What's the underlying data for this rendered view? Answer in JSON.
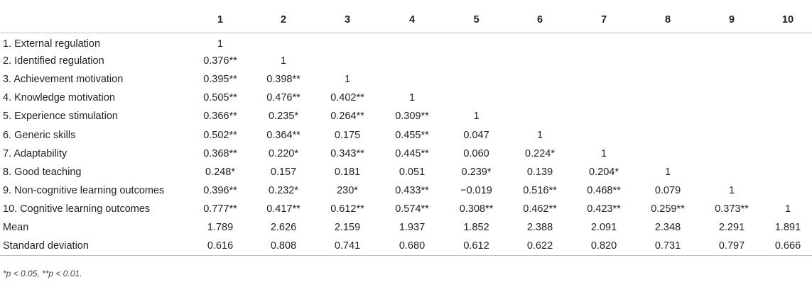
{
  "table": {
    "columns": [
      "",
      "1",
      "2",
      "3",
      "4",
      "5",
      "6",
      "7",
      "8",
      "9",
      "10"
    ],
    "rows": [
      {
        "label": "1. External regulation",
        "cells": [
          "1",
          "",
          "",
          "",
          "",
          "",
          "",
          "",
          "",
          ""
        ]
      },
      {
        "label": "2. Identified regulation",
        "cells": [
          "0.376**",
          "1",
          "",
          "",
          "",
          "",
          "",
          "",
          "",
          ""
        ]
      },
      {
        "label": "3. Achievement motivation",
        "cells": [
          "0.395**",
          "0.398**",
          "1",
          "",
          "",
          "",
          "",
          "",
          "",
          ""
        ]
      },
      {
        "label": "4. Knowledge motivation",
        "cells": [
          "0.505**",
          "0.476**",
          "0.402**",
          "1",
          "",
          "",
          "",
          "",
          "",
          ""
        ]
      },
      {
        "label": "5. Experience stimulation",
        "cells": [
          "0.366**",
          "0.235*",
          "0.264**",
          "0.309**",
          "1",
          "",
          "",
          "",
          "",
          ""
        ]
      },
      {
        "label": "6. Generic skills",
        "cells": [
          "0.502**",
          "0.364**",
          "0.175",
          "0.455**",
          "0.047",
          "1",
          "",
          "",
          "",
          ""
        ]
      },
      {
        "label": "7. Adaptability",
        "cells": [
          "0.368**",
          "0.220*",
          "0.343**",
          "0.445**",
          "0.060",
          "0.224*",
          "1",
          "",
          "",
          ""
        ]
      },
      {
        "label": "8. Good teaching",
        "cells": [
          "0.248*",
          "0.157",
          "0.181",
          "0.051",
          "0.239*",
          "0.139",
          "0.204*",
          "1",
          "",
          ""
        ]
      },
      {
        "label": "9. Non-cognitive learning outcomes",
        "cells": [
          "0.396**",
          "0.232*",
          "230*",
          "0.433**",
          "−0.019",
          "0.516**",
          "0.468**",
          "0.079",
          "1",
          ""
        ]
      },
      {
        "label": "10. Cognitive learning outcomes",
        "cells": [
          "0.777**",
          "0.417**",
          "0.612**",
          "0.574**",
          "0.308**",
          "0.462**",
          "0.423**",
          "0.259**",
          "0.373**",
          "1"
        ]
      },
      {
        "label": "Mean",
        "cells": [
          "1.789",
          "2.626",
          "2.159",
          "1.937",
          "1.852",
          "2.388",
          "2.091",
          "2.348",
          "2.291",
          "1.891"
        ]
      },
      {
        "label": "Standard deviation",
        "cells": [
          "0.616",
          "0.808",
          "0.741",
          "0.680",
          "0.612",
          "0.622",
          "0.820",
          "0.731",
          "0.797",
          "0.666"
        ]
      }
    ]
  },
  "footnote": "*p < 0.05, **p < 0.01."
}
